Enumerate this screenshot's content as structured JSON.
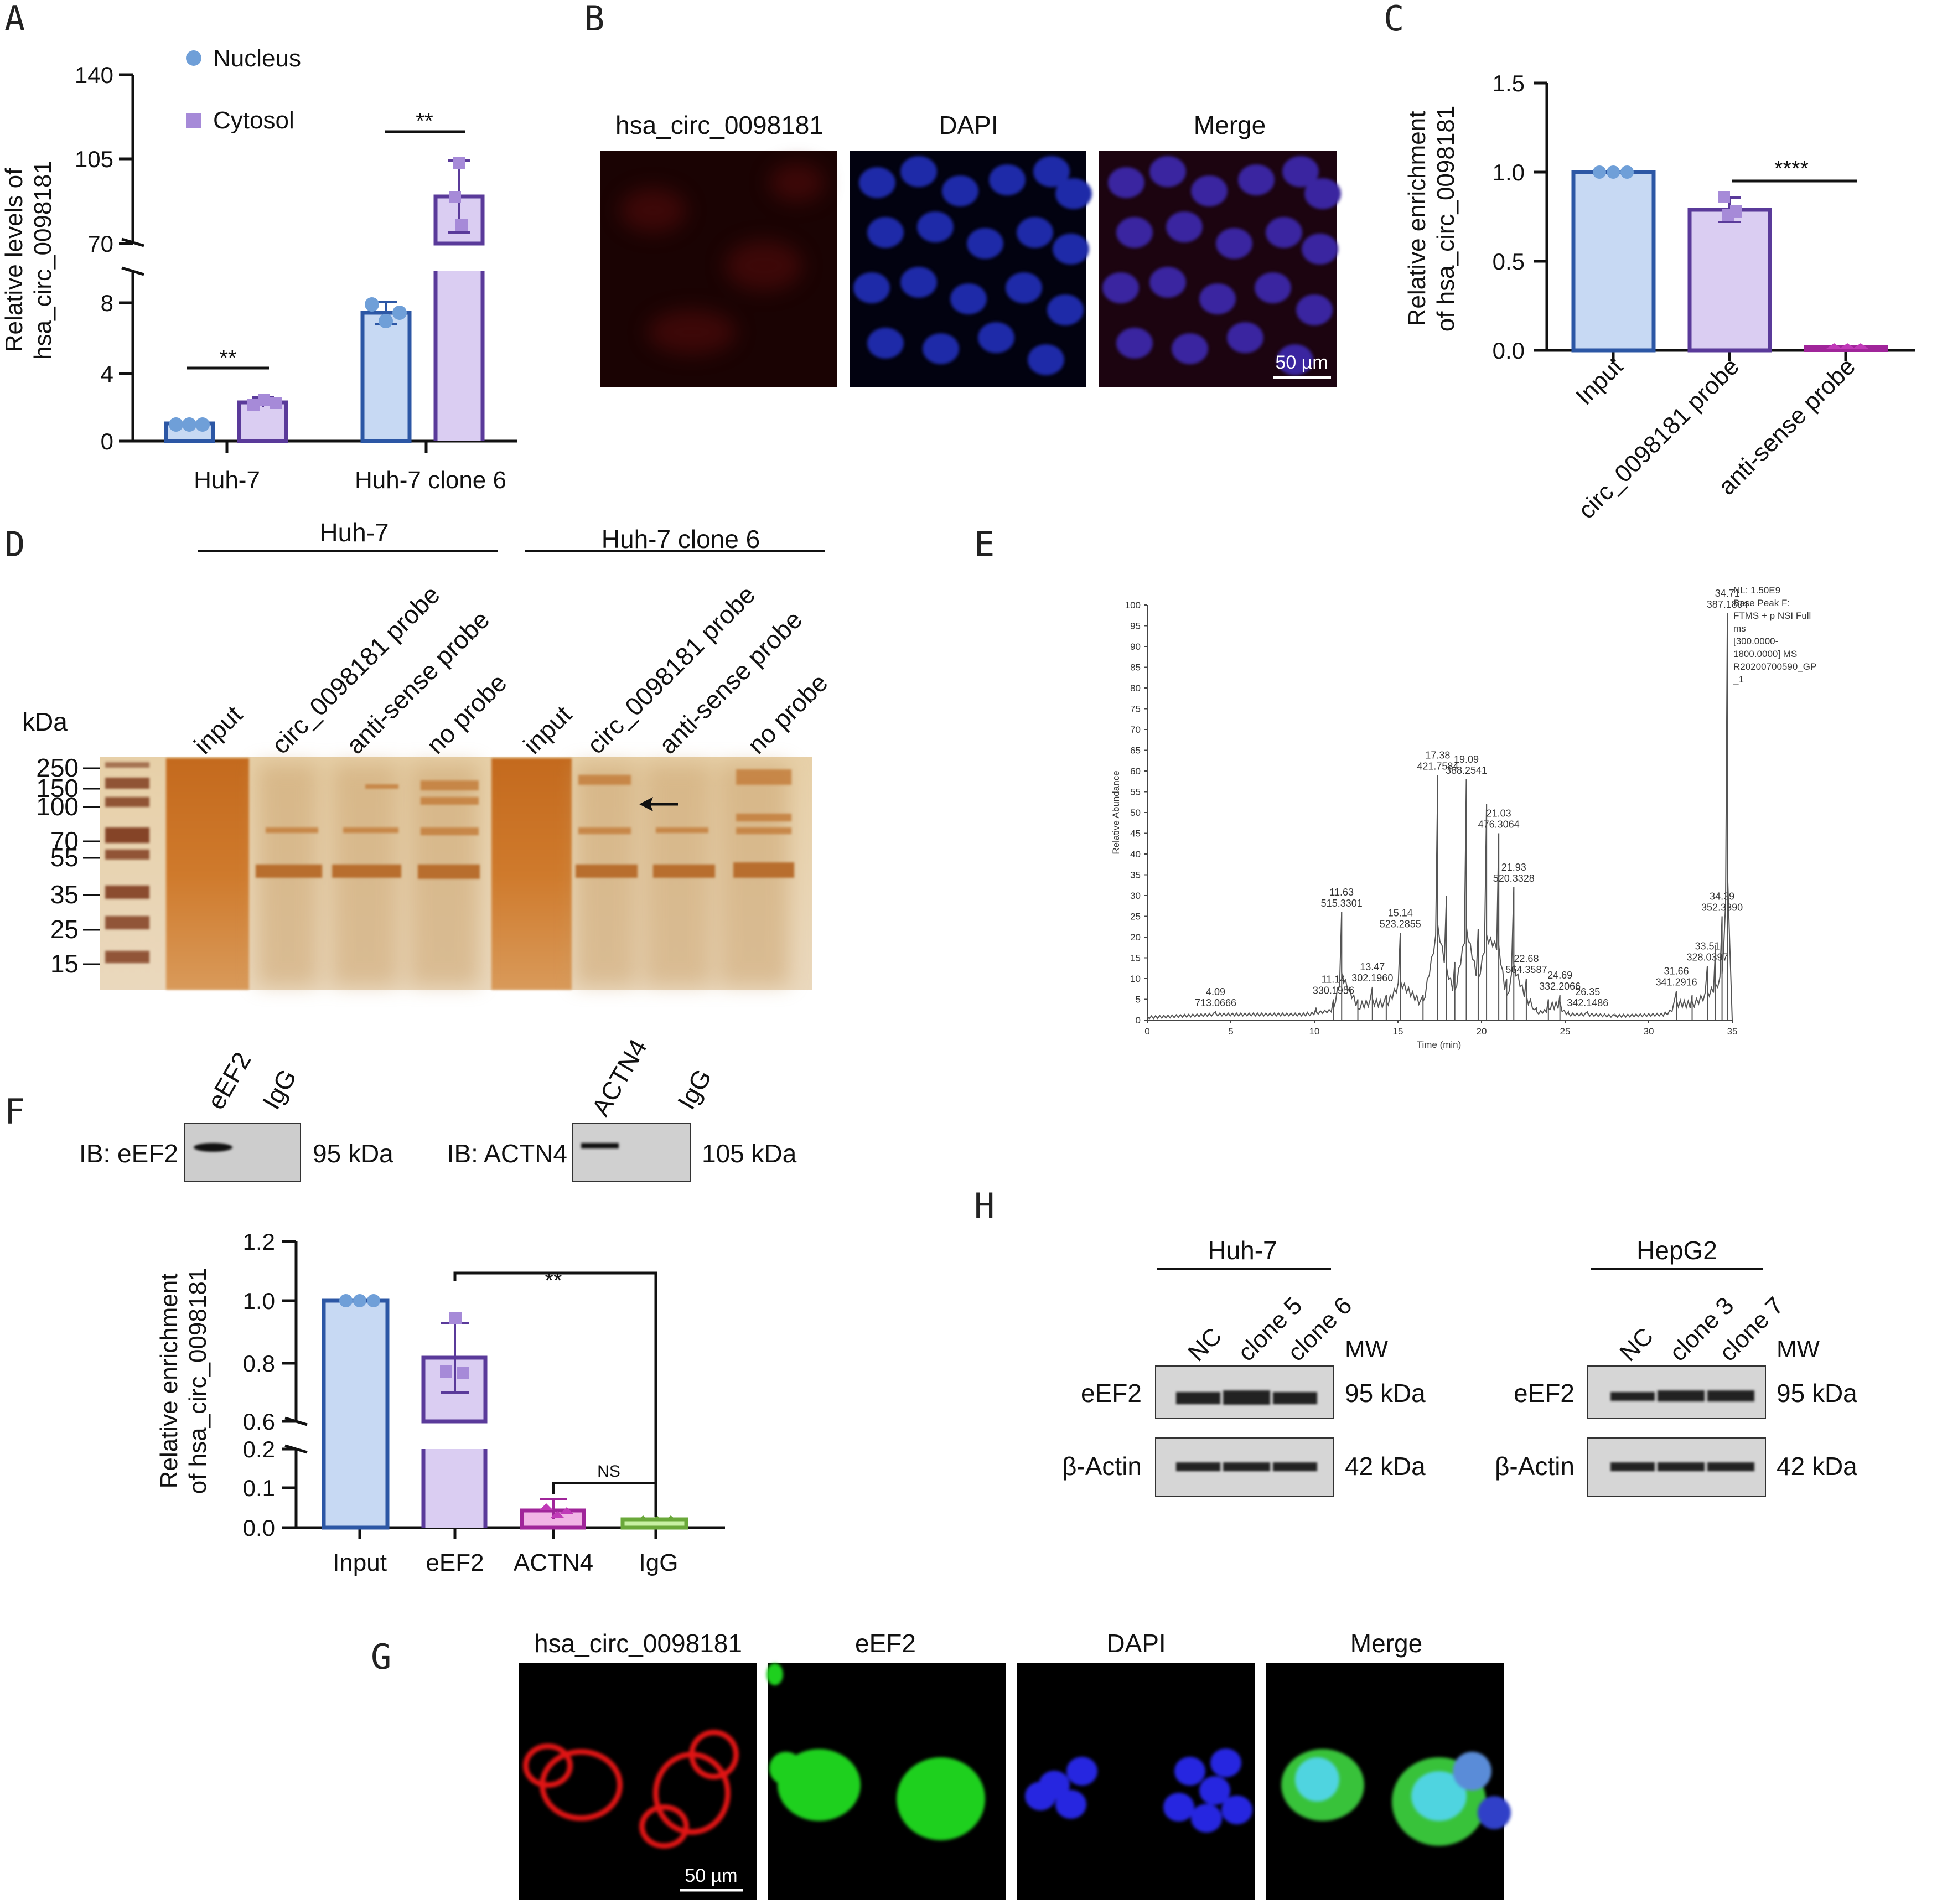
{
  "panel_labels": {
    "A": "A",
    "B": "B",
    "C": "C",
    "D": "D",
    "E": "E",
    "F": "F",
    "G": "G",
    "H": "H"
  },
  "panel_a": {
    "ylabel_line1": "Relative levels of",
    "ylabel_line2": "hsa_circ_0098181",
    "legend": {
      "nucleus": "Nucleus",
      "cytosol": "Cytosol"
    },
    "ticks_upper": [
      "140",
      "105",
      "70"
    ],
    "ticks_lower": [
      "8",
      "4",
      "0"
    ],
    "groups": [
      "Huh-7",
      "Huh-7 clone 6"
    ],
    "sig": [
      "**",
      "**"
    ]
  },
  "panel_b": {
    "titles": [
      "hsa_circ_0098181",
      "DAPI",
      "Merge"
    ],
    "scalebar": "50 µm"
  },
  "panel_c": {
    "ylabel_line1": "Relative enrichment",
    "ylabel_line2": "of hsa_circ_0098181",
    "ticks": [
      "1.5",
      "1.0",
      "0.5",
      "0.0"
    ],
    "categories": [
      "Input",
      "circ_0098181 probe",
      "anti-sense probe"
    ],
    "sig": "****"
  },
  "panel_d": {
    "group1": "Huh-7",
    "group2": "Huh-7 clone 6",
    "lanes": [
      "input",
      "circ_0098181 probe",
      "anti-sense probe",
      "no probe",
      "input",
      "circ_0098181 probe",
      "anti-sense probe",
      "no probe"
    ],
    "kda_label": "kDa",
    "markers": [
      "250",
      "150",
      "100",
      "70",
      "55",
      "35",
      "25",
      "15"
    ]
  },
  "panel_e": {
    "ylabel": "Relative Abundance",
    "xlabel": "Time (min)",
    "yticks": [
      "100",
      "95",
      "90",
      "85",
      "80",
      "75",
      "70",
      "65",
      "60",
      "55",
      "50",
      "45",
      "40",
      "35",
      "30",
      "25",
      "20",
      "15",
      "10",
      "5",
      "0"
    ],
    "xticks": [
      "0",
      "5",
      "10",
      "15",
      "20",
      "25",
      "30",
      "35"
    ],
    "info_lines": [
      "NL: 1.50E9",
      "Base Peak F:",
      "FTMS + p NSI Full",
      "ms",
      "[300.0000-",
      "1800.0000]  MS",
      "R20200700590_GP",
      "_1"
    ],
    "peak_labels": [
      {
        "t": "4.09",
        "mz": "713.0666"
      },
      {
        "t": "11.14",
        "mz": "330.1956"
      },
      {
        "t": "11.63",
        "mz": "515.3301"
      },
      {
        "t": "13.47",
        "mz": "302.1960"
      },
      {
        "t": "15.14",
        "mz": "523.2855"
      },
      {
        "t": "17.38",
        "mz": "421.7584"
      },
      {
        "t": "19.09",
        "mz": "388.2541"
      },
      {
        "t": "21.03",
        "mz": "476.3064"
      },
      {
        "t": "21.93",
        "mz": "520.3328"
      },
      {
        "t": "22.68",
        "mz": "564.3587"
      },
      {
        "t": "24.69",
        "mz": "332.2066"
      },
      {
        "t": "26.35",
        "mz": "342.1486"
      },
      {
        "t": "31.66",
        "mz": "341.2916"
      },
      {
        "t": "33.51",
        "mz": "328.0397"
      },
      {
        "t": "34.39",
        "mz": "352.3390"
      },
      {
        "t": "34.71",
        "mz": "387.1804"
      }
    ]
  },
  "panel_f": {
    "blot1": {
      "lanes": [
        "eEF2",
        "IgG"
      ],
      "ib": "IB: eEF2",
      "mw": "95 kDa"
    },
    "blot2": {
      "lanes": [
        "ACTN4",
        "IgG"
      ],
      "ib": "IB: ACTN4",
      "mw": "105 kDa"
    },
    "ylabel_line1": "Relative enrichment",
    "ylabel_line2": "of hsa_circ_0098181",
    "ticks_upper": [
      "1.2",
      "1.0",
      "0.8",
      "0.6"
    ],
    "ticks_lower": [
      "0.2",
      "0.1",
      "0.0"
    ],
    "categories": [
      "Input",
      "eEF2",
      "ACTN4",
      "IgG"
    ],
    "sig": "**",
    "ns": "NS"
  },
  "panel_g": {
    "titles": [
      "hsa_circ_0098181",
      "eEF2",
      "DAPI",
      "Merge"
    ],
    "scalebar": "50 µm"
  },
  "panel_h": {
    "left": {
      "group": "Huh-7",
      "lanes": [
        "NC",
        "clone 5",
        "clone 6"
      ]
    },
    "right": {
      "group": "HepG2",
      "lanes": [
        "NC",
        "clone 3",
        "clone 7"
      ]
    },
    "mw_header": "MW",
    "rows": [
      {
        "name": "eEF2",
        "mw": "95 kDa"
      },
      {
        "name": "β-Actin",
        "mw": "42 kDa"
      }
    ]
  },
  "chart_data": [
    {
      "panel": "A",
      "type": "bar",
      "categories": [
        "Huh-7",
        "Huh-7 clone 6"
      ],
      "series": [
        {
          "name": "Nucleus",
          "values": [
            1.0,
            7.6
          ],
          "points": [
            [
              0.9,
              1.0,
              1.0
            ],
            [
              8.0,
              7.3,
              7.5
            ]
          ],
          "color": "#6f9fd8"
        },
        {
          "name": "Cytosol",
          "values": [
            2.1,
            91
          ],
          "points": [
            [
              1.9,
              2.2,
              2.3
            ],
            [
              100,
              90,
              83
            ]
          ],
          "color": "#a68ad8"
        }
      ],
      "ylabel": "Relative levels of hsa_circ_0098181",
      "y_break": [
        8,
        70
      ],
      "ylim": [
        0,
        140
      ]
    },
    {
      "panel": "C",
      "type": "bar",
      "categories": [
        "Input",
        "circ_0098181 probe",
        "anti-sense probe"
      ],
      "values": [
        1.0,
        0.79,
        0.01
      ],
      "points": [
        [
          1.0,
          1.0,
          1.0
        ],
        [
          0.85,
          0.76,
          0.74
        ],
        [
          0.01,
          0.01,
          0.01
        ]
      ],
      "ylabel": "Relative enrichment of hsa_circ_0098181",
      "ylim": [
        0,
        1.5
      ]
    },
    {
      "panel": "E",
      "type": "line",
      "xlabel": "Time (min)",
      "ylabel": "Relative Abundance",
      "xlim": [
        0,
        35
      ],
      "ylim": [
        0,
        100
      ],
      "x": [
        0,
        4.09,
        9.6,
        10.1,
        11.14,
        11.63,
        12.6,
        13.47,
        14.3,
        15.14,
        16.5,
        17.38,
        17.9,
        18.4,
        19.09,
        19.8,
        20.3,
        21.03,
        21.5,
        21.93,
        22.68,
        23.3,
        24.0,
        24.69,
        25.2,
        26.35,
        28,
        31.0,
        31.66,
        32.6,
        33.51,
        34.0,
        34.39,
        34.71,
        35
      ],
      "y": [
        0,
        2,
        2,
        3,
        5,
        26,
        5,
        8,
        6,
        21,
        6,
        59,
        30,
        14,
        58,
        22,
        52,
        45,
        10,
        32,
        10,
        3,
        5,
        6,
        2,
        2,
        1,
        2,
        7,
        6,
        13,
        18,
        25,
        98,
        0
      ]
    },
    {
      "panel": "F",
      "type": "bar",
      "categories": [
        "Input",
        "eEF2",
        "ACTN4",
        "IgG"
      ],
      "values": [
        1.0,
        0.82,
        0.045,
        0.02
      ],
      "points": [
        [
          1.0,
          1.0,
          1.0
        ],
        [
          0.95,
          0.77,
          0.78
        ],
        [
          0.07,
          0.05,
          0.04
        ],
        [
          0.03,
          0.015,
          0.02
        ]
      ],
      "ylabel": "Relative enrichment of hsa_circ_0098181",
      "y_break": [
        0.2,
        0.6
      ],
      "ylim": [
        0,
        1.2
      ]
    }
  ]
}
